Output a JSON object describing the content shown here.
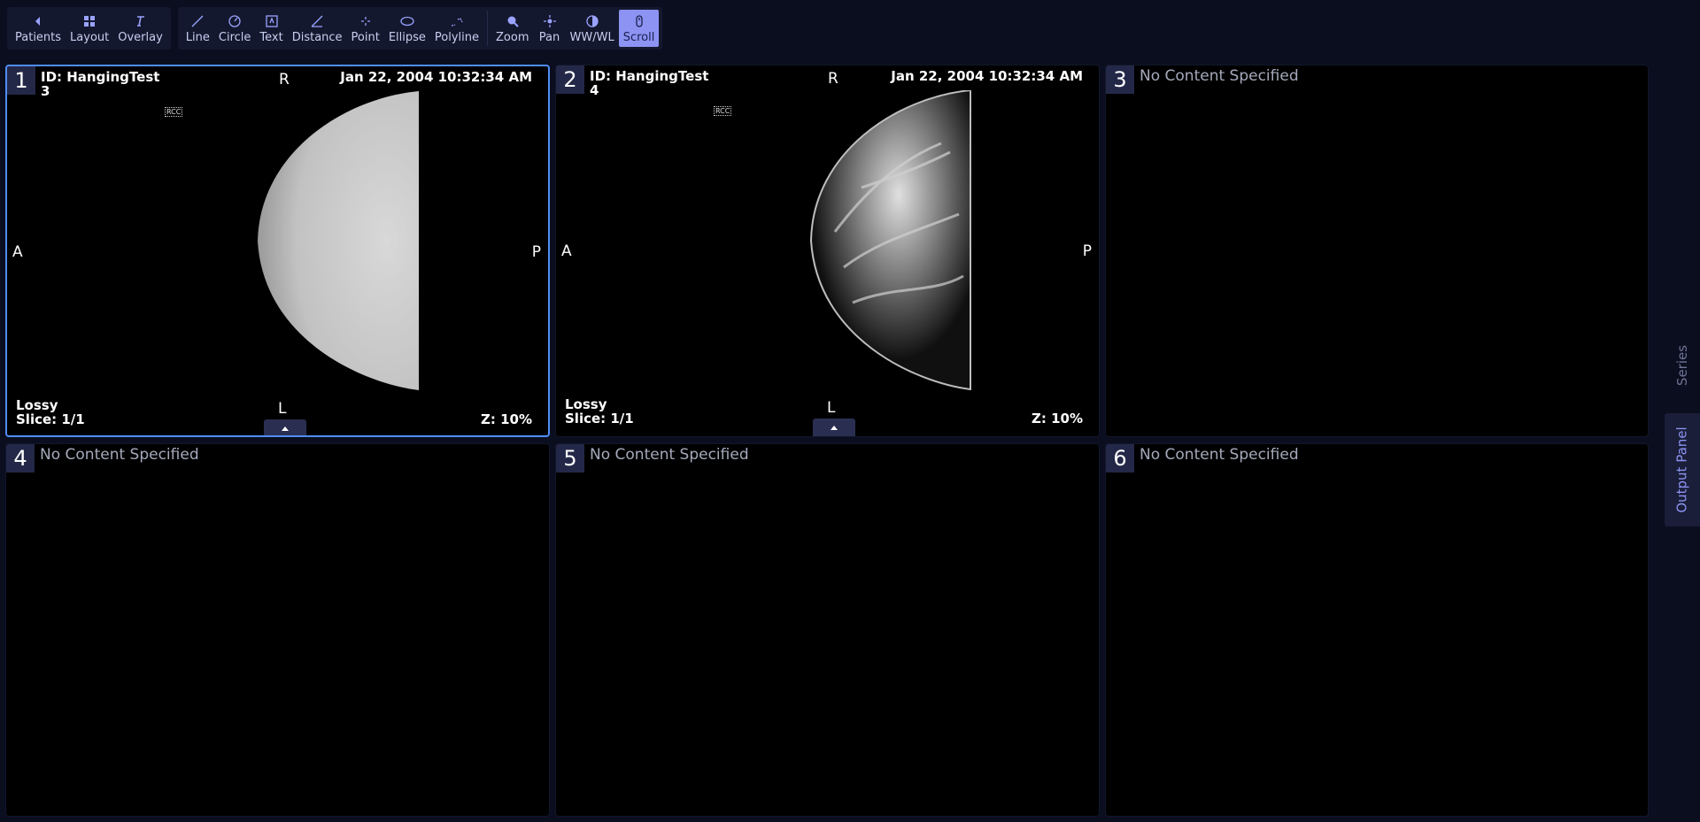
{
  "toolbar": {
    "nav": [
      {
        "label": "Patients",
        "icon": "caret-left-icon"
      },
      {
        "label": "Layout",
        "icon": "layout-grid-icon"
      },
      {
        "label": "Overlay",
        "icon": "overlay-text-icon"
      }
    ],
    "annotate": [
      {
        "label": "Line",
        "icon": "line-icon"
      },
      {
        "label": "Circle",
        "icon": "circle-icon"
      },
      {
        "label": "Text",
        "icon": "text-box-icon"
      },
      {
        "label": "Distance",
        "icon": "distance-icon"
      },
      {
        "label": "Point",
        "icon": "point-icon"
      },
      {
        "label": "Ellipse",
        "icon": "ellipse-icon"
      },
      {
        "label": "Polyline",
        "icon": "polyline-icon"
      }
    ],
    "view": [
      {
        "label": "Zoom",
        "icon": "zoom-icon"
      },
      {
        "label": "Pan",
        "icon": "pan-icon"
      },
      {
        "label": "WW/WL",
        "icon": "window-level-icon"
      },
      {
        "label": "Scroll",
        "icon": "scroll-icon",
        "active": true
      }
    ]
  },
  "viewports": [
    {
      "number": "1",
      "selected": true,
      "patient_id": "ID: HangingTest",
      "series_number": "3",
      "date": "Jan 22, 2004 10:32:34 AM",
      "orientation": {
        "top": "R",
        "left": "A",
        "right": "P",
        "bottom": "L"
      },
      "compression": "Lossy",
      "slice": "Slice: 1/1",
      "zoom": "Z: 10%",
      "image_marker": "RCC",
      "expand_icon": "chevron-up-icon"
    },
    {
      "number": "2",
      "selected": false,
      "patient_id": "ID: HangingTest",
      "series_number": "4",
      "date": "Jan 22, 2004 10:32:34 AM",
      "orientation": {
        "top": "R",
        "left": "A",
        "right": "P",
        "bottom": "L"
      },
      "compression": "Lossy",
      "slice": "Slice: 1/1",
      "zoom": "Z: 10%",
      "image_marker": "RCC",
      "expand_icon": "chevron-up-icon"
    },
    {
      "number": "3",
      "empty_text": "No Content Specified"
    },
    {
      "number": "4",
      "empty_text": "No Content Specified"
    },
    {
      "number": "5",
      "empty_text": "No Content Specified"
    },
    {
      "number": "6",
      "empty_text": "No Content Specified"
    }
  ],
  "side_panel": {
    "series_label": "Series",
    "output_label": "Output Panel"
  },
  "colors": {
    "background": "#0a0e1f",
    "accent": "#8c93f2",
    "selected_border": "#4f8df5"
  }
}
